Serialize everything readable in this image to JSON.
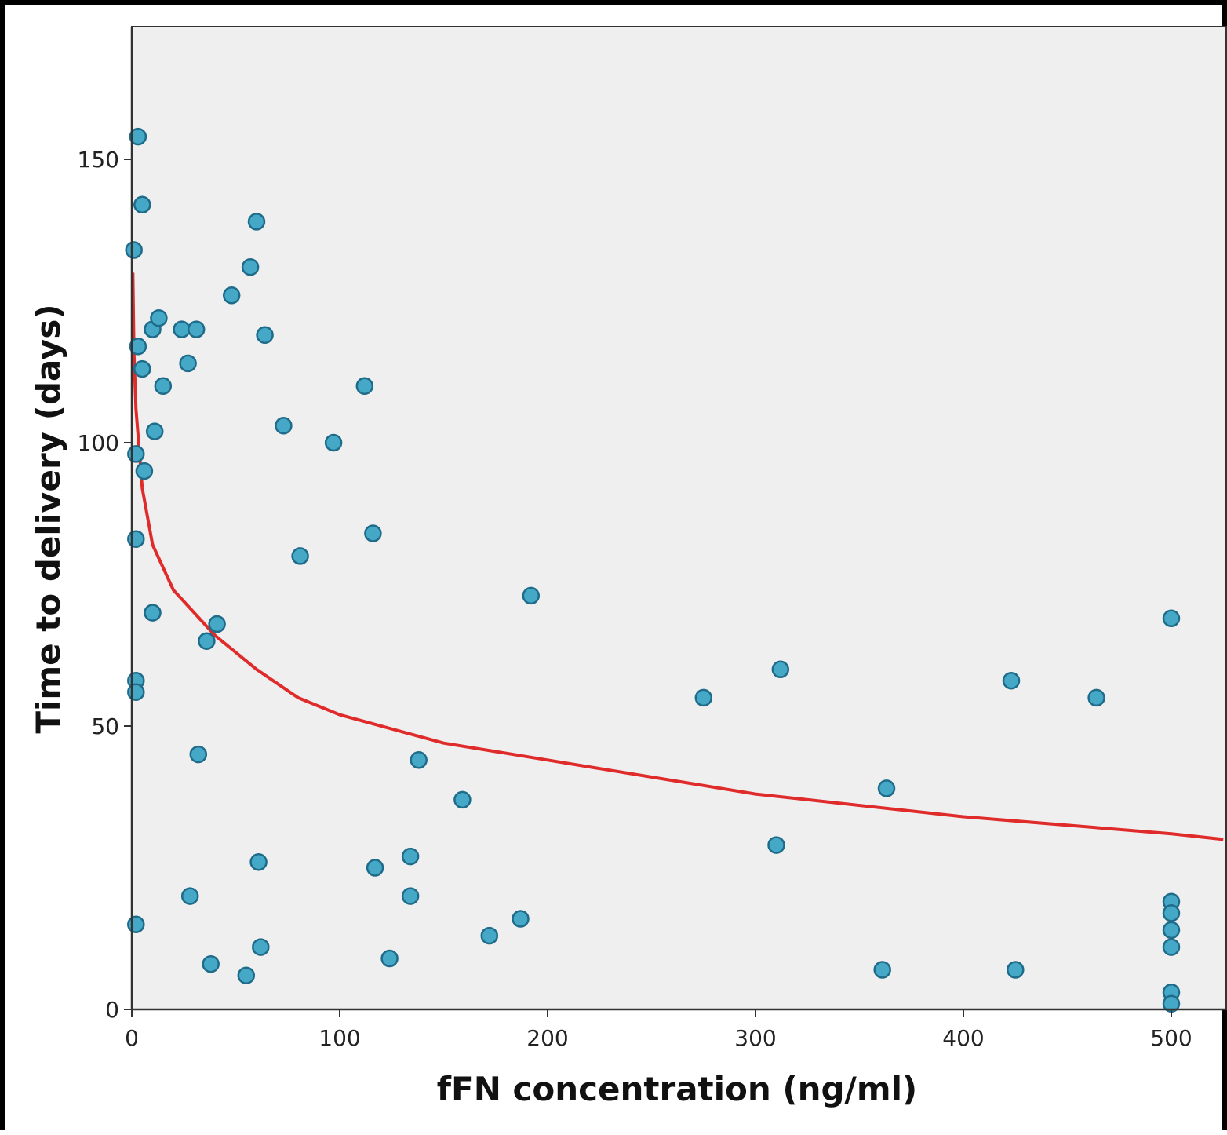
{
  "chart_data": {
    "type": "scatter",
    "title": "",
    "xlabel": "fFN concentration (ng/ml)",
    "ylabel": "Time to delivery (days)",
    "xlim": [
      0,
      525
    ],
    "ylim": [
      0,
      172
    ],
    "xticks": [
      0,
      100,
      200,
      300,
      400,
      500
    ],
    "yticks": [
      0,
      50,
      100,
      150
    ],
    "grid": false,
    "legend": "none",
    "colors": {
      "background": "#efefef",
      "point_fill": "#46a8c7",
      "point_stroke": "#1f6c8a",
      "fit_line": "#e02b2b",
      "axis": "#333333"
    },
    "series": [
      {
        "type": "scatter",
        "points": [
          {
            "x": 3,
            "y": 154
          },
          {
            "x": 5,
            "y": 142
          },
          {
            "x": 1,
            "y": 134
          },
          {
            "x": 3,
            "y": 117
          },
          {
            "x": 5,
            "y": 113
          },
          {
            "x": 10,
            "y": 120
          },
          {
            "x": 13,
            "y": 122
          },
          {
            "x": 24,
            "y": 120
          },
          {
            "x": 31,
            "y": 120
          },
          {
            "x": 27,
            "y": 114
          },
          {
            "x": 15,
            "y": 110
          },
          {
            "x": 11,
            "y": 102
          },
          {
            "x": 2,
            "y": 98
          },
          {
            "x": 6,
            "y": 95
          },
          {
            "x": 2,
            "y": 83
          },
          {
            "x": 10,
            "y": 70
          },
          {
            "x": 2,
            "y": 58
          },
          {
            "x": 2,
            "y": 56
          },
          {
            "x": 2,
            "y": 15
          },
          {
            "x": 48,
            "y": 126
          },
          {
            "x": 57,
            "y": 131
          },
          {
            "x": 60,
            "y": 139
          },
          {
            "x": 64,
            "y": 119
          },
          {
            "x": 73,
            "y": 103
          },
          {
            "x": 97,
            "y": 100
          },
          {
            "x": 112,
            "y": 110
          },
          {
            "x": 116,
            "y": 84
          },
          {
            "x": 81,
            "y": 80
          },
          {
            "x": 36,
            "y": 65
          },
          {
            "x": 41,
            "y": 68
          },
          {
            "x": 32,
            "y": 45
          },
          {
            "x": 28,
            "y": 20
          },
          {
            "x": 38,
            "y": 8
          },
          {
            "x": 55,
            "y": 6
          },
          {
            "x": 61,
            "y": 26
          },
          {
            "x": 62,
            "y": 11
          },
          {
            "x": 117,
            "y": 25
          },
          {
            "x": 124,
            "y": 9
          },
          {
            "x": 134,
            "y": 27
          },
          {
            "x": 134,
            "y": 20
          },
          {
            "x": 138,
            "y": 44
          },
          {
            "x": 159,
            "y": 37
          },
          {
            "x": 172,
            "y": 13
          },
          {
            "x": 187,
            "y": 16
          },
          {
            "x": 192,
            "y": 73
          },
          {
            "x": 275,
            "y": 55
          },
          {
            "x": 312,
            "y": 60
          },
          {
            "x": 310,
            "y": 29
          },
          {
            "x": 361,
            "y": 7
          },
          {
            "x": 363,
            "y": 39
          },
          {
            "x": 423,
            "y": 58
          },
          {
            "x": 425,
            "y": 7
          },
          {
            "x": 464,
            "y": 55
          },
          {
            "x": 500,
            "y": 69
          },
          {
            "x": 500,
            "y": 19
          },
          {
            "x": 500,
            "y": 17
          },
          {
            "x": 500,
            "y": 14
          },
          {
            "x": 500,
            "y": 11
          },
          {
            "x": 500,
            "y": 3
          },
          {
            "x": 500,
            "y": 1
          }
        ]
      },
      {
        "type": "line",
        "fit": "logarithmic",
        "points": [
          {
            "x": 0.5,
            "y": 130
          },
          {
            "x": 1,
            "y": 116
          },
          {
            "x": 2,
            "y": 106
          },
          {
            "x": 5,
            "y": 92
          },
          {
            "x": 10,
            "y": 82
          },
          {
            "x": 20,
            "y": 74
          },
          {
            "x": 40,
            "y": 66
          },
          {
            "x": 60,
            "y": 60
          },
          {
            "x": 80,
            "y": 55
          },
          {
            "x": 100,
            "y": 52
          },
          {
            "x": 150,
            "y": 47
          },
          {
            "x": 200,
            "y": 44
          },
          {
            "x": 300,
            "y": 38
          },
          {
            "x": 400,
            "y": 34
          },
          {
            "x": 500,
            "y": 31
          },
          {
            "x": 525,
            "y": 30
          }
        ]
      }
    ]
  }
}
